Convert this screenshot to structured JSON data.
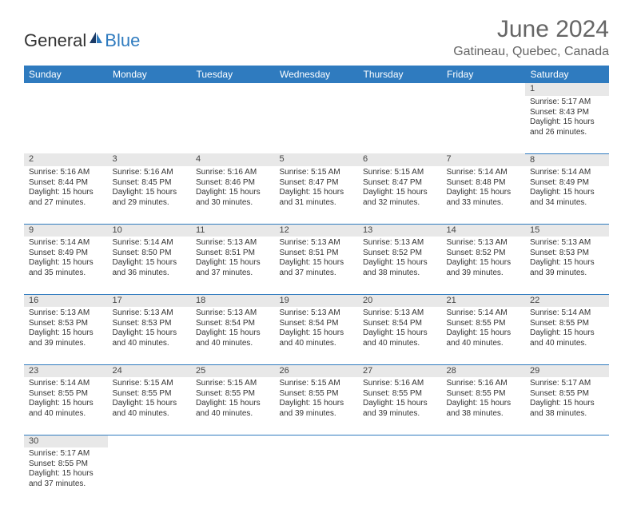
{
  "logo": {
    "text1": "General",
    "text2": "Blue"
  },
  "title": "June 2024",
  "location": "Gatineau, Quebec, Canada",
  "style": {
    "header_bg": "#2f7bbf",
    "header_fg": "#ffffff",
    "daynum_bg": "#e8e8e8",
    "border_color": "#2f7bbf",
    "page_bg": "#ffffff",
    "title_color": "#666666",
    "cell_fontsize": 10,
    "header_fontsize": 12,
    "title_fontsize": 30
  },
  "weekdays": [
    "Sunday",
    "Monday",
    "Tuesday",
    "Wednesday",
    "Thursday",
    "Friday",
    "Saturday"
  ],
  "weeks": [
    [
      null,
      null,
      null,
      null,
      null,
      null,
      {
        "n": "1",
        "sr": "5:17 AM",
        "ss": "8:43 PM",
        "dl": "15 hours and 26 minutes."
      }
    ],
    [
      {
        "n": "2",
        "sr": "5:16 AM",
        "ss": "8:44 PM",
        "dl": "15 hours and 27 minutes."
      },
      {
        "n": "3",
        "sr": "5:16 AM",
        "ss": "8:45 PM",
        "dl": "15 hours and 29 minutes."
      },
      {
        "n": "4",
        "sr": "5:16 AM",
        "ss": "8:46 PM",
        "dl": "15 hours and 30 minutes."
      },
      {
        "n": "5",
        "sr": "5:15 AM",
        "ss": "8:47 PM",
        "dl": "15 hours and 31 minutes."
      },
      {
        "n": "6",
        "sr": "5:15 AM",
        "ss": "8:47 PM",
        "dl": "15 hours and 32 minutes."
      },
      {
        "n": "7",
        "sr": "5:14 AM",
        "ss": "8:48 PM",
        "dl": "15 hours and 33 minutes."
      },
      {
        "n": "8",
        "sr": "5:14 AM",
        "ss": "8:49 PM",
        "dl": "15 hours and 34 minutes."
      }
    ],
    [
      {
        "n": "9",
        "sr": "5:14 AM",
        "ss": "8:49 PM",
        "dl": "15 hours and 35 minutes."
      },
      {
        "n": "10",
        "sr": "5:14 AM",
        "ss": "8:50 PM",
        "dl": "15 hours and 36 minutes."
      },
      {
        "n": "11",
        "sr": "5:13 AM",
        "ss": "8:51 PM",
        "dl": "15 hours and 37 minutes."
      },
      {
        "n": "12",
        "sr": "5:13 AM",
        "ss": "8:51 PM",
        "dl": "15 hours and 37 minutes."
      },
      {
        "n": "13",
        "sr": "5:13 AM",
        "ss": "8:52 PM",
        "dl": "15 hours and 38 minutes."
      },
      {
        "n": "14",
        "sr": "5:13 AM",
        "ss": "8:52 PM",
        "dl": "15 hours and 39 minutes."
      },
      {
        "n": "15",
        "sr": "5:13 AM",
        "ss": "8:53 PM",
        "dl": "15 hours and 39 minutes."
      }
    ],
    [
      {
        "n": "16",
        "sr": "5:13 AM",
        "ss": "8:53 PM",
        "dl": "15 hours and 39 minutes."
      },
      {
        "n": "17",
        "sr": "5:13 AM",
        "ss": "8:53 PM",
        "dl": "15 hours and 40 minutes."
      },
      {
        "n": "18",
        "sr": "5:13 AM",
        "ss": "8:54 PM",
        "dl": "15 hours and 40 minutes."
      },
      {
        "n": "19",
        "sr": "5:13 AM",
        "ss": "8:54 PM",
        "dl": "15 hours and 40 minutes."
      },
      {
        "n": "20",
        "sr": "5:13 AM",
        "ss": "8:54 PM",
        "dl": "15 hours and 40 minutes."
      },
      {
        "n": "21",
        "sr": "5:14 AM",
        "ss": "8:55 PM",
        "dl": "15 hours and 40 minutes."
      },
      {
        "n": "22",
        "sr": "5:14 AM",
        "ss": "8:55 PM",
        "dl": "15 hours and 40 minutes."
      }
    ],
    [
      {
        "n": "23",
        "sr": "5:14 AM",
        "ss": "8:55 PM",
        "dl": "15 hours and 40 minutes."
      },
      {
        "n": "24",
        "sr": "5:15 AM",
        "ss": "8:55 PM",
        "dl": "15 hours and 40 minutes."
      },
      {
        "n": "25",
        "sr": "5:15 AM",
        "ss": "8:55 PM",
        "dl": "15 hours and 40 minutes."
      },
      {
        "n": "26",
        "sr": "5:15 AM",
        "ss": "8:55 PM",
        "dl": "15 hours and 39 minutes."
      },
      {
        "n": "27",
        "sr": "5:16 AM",
        "ss": "8:55 PM",
        "dl": "15 hours and 39 minutes."
      },
      {
        "n": "28",
        "sr": "5:16 AM",
        "ss": "8:55 PM",
        "dl": "15 hours and 38 minutes."
      },
      {
        "n": "29",
        "sr": "5:17 AM",
        "ss": "8:55 PM",
        "dl": "15 hours and 38 minutes."
      }
    ],
    [
      {
        "n": "30",
        "sr": "5:17 AM",
        "ss": "8:55 PM",
        "dl": "15 hours and 37 minutes."
      },
      null,
      null,
      null,
      null,
      null,
      null
    ]
  ],
  "labels": {
    "sunrise": "Sunrise:",
    "sunset": "Sunset:",
    "daylight": "Daylight:"
  }
}
